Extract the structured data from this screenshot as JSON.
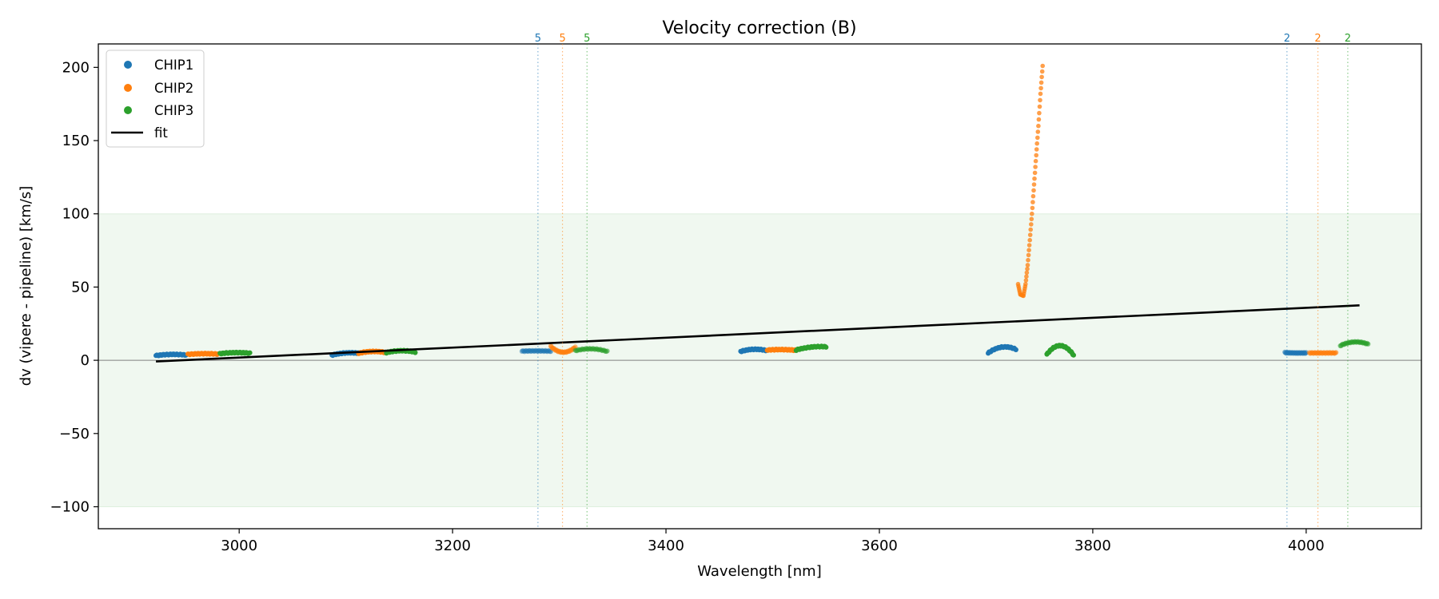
{
  "chart_data": {
    "type": "scatter",
    "title": "Velocity correction (B)",
    "xlabel": "Wavelength [nm]",
    "ylabel": "dv (vipere - pipeline) [km/s]",
    "xlim": [
      2868,
      4108
    ],
    "ylim": [
      -115,
      216
    ],
    "xticks": [
      3000,
      3200,
      3400,
      3600,
      3800,
      4000
    ],
    "yticks": [
      -100,
      -50,
      0,
      50,
      100,
      150,
      200
    ],
    "ytick_labels": [
      "−100",
      "−50",
      "0",
      "50",
      "100",
      "150",
      "200"
    ],
    "tolerance_band": [
      -100,
      100
    ],
    "zero_line": 0,
    "legend": {
      "position": "top-left",
      "entries": [
        "CHIP1",
        "CHIP2",
        "CHIP3",
        "fit"
      ]
    },
    "colors": {
      "CHIP1": "#1f77b4",
      "CHIP2": "#ff7f0e",
      "CHIP3": "#2ca02c",
      "fit": "#000000",
      "band": "#2ca02c"
    },
    "fit": {
      "x": [
        2922,
        4050
      ],
      "y": [
        -0.8,
        37.5
      ]
    },
    "segments": [
      {
        "chip": "CHIP1",
        "xr": [
          2922,
          2950
        ],
        "y": [
          3.2,
          4.0,
          3.6
        ],
        "alpha": 1.0
      },
      {
        "chip": "CHIP2",
        "xr": [
          2952,
          2980
        ],
        "y": [
          4.0,
          4.5,
          4.2
        ],
        "alpha": 1.0
      },
      {
        "chip": "CHIP3",
        "xr": [
          2982,
          3010
        ],
        "y": [
          4.5,
          5.2,
          4.8
        ],
        "alpha": 1.0
      },
      {
        "chip": "CHIP1",
        "xr": [
          3087,
          3112
        ],
        "y": [
          3.5,
          5.0,
          4.8
        ],
        "alpha": 1.0
      },
      {
        "chip": "CHIP2",
        "xr": [
          3112,
          3138
        ],
        "y": [
          4.8,
          6.0,
          5.2
        ],
        "alpha": 1.0
      },
      {
        "chip": "CHIP3",
        "xr": [
          3138,
          3165
        ],
        "y": [
          5.2,
          6.5,
          5.6
        ],
        "alpha": 1.0
      },
      {
        "chip": "CHIP1",
        "xr": [
          3265,
          3292
        ],
        "y": [
          6.2,
          6.4,
          6.2
        ],
        "alpha": 0.5
      },
      {
        "chip": "CHIP2",
        "xr": [
          3292,
          3315
        ],
        "y": [
          9.5,
          5.5,
          9.0
        ],
        "alpha": 0.55
      },
      {
        "chip": "CHIP3",
        "xr": [
          3315,
          3345
        ],
        "y": [
          6.5,
          7.8,
          6.0
        ],
        "alpha": 0.5
      },
      {
        "chip": "CHIP1",
        "xr": [
          3470,
          3495
        ],
        "y": [
          6.0,
          7.5,
          6.5
        ],
        "alpha": 1.0
      },
      {
        "chip": "CHIP2",
        "xr": [
          3495,
          3522
        ],
        "y": [
          7.0,
          7.3,
          6.8
        ],
        "alpha": 1.0
      },
      {
        "chip": "CHIP3",
        "xr": [
          3522,
          3550
        ],
        "y": [
          7.0,
          9.0,
          9.2
        ],
        "alpha": 1.0
      },
      {
        "chip": "CHIP1",
        "xr": [
          3702,
          3728
        ],
        "y": [
          5.0,
          9.0,
          7.5
        ],
        "alpha": 1.0
      },
      {
        "chip": "CHIP3",
        "xr": [
          3757,
          3782
        ],
        "y": [
          4.0,
          10.0,
          3.5
        ],
        "alpha": 1.0
      },
      {
        "chip": "CHIP1",
        "xr": [
          3980,
          4000
        ],
        "y": [
          5.2,
          5.0,
          5.0
        ],
        "alpha": 0.55
      },
      {
        "chip": "CHIP2",
        "xr": [
          4003,
          4028
        ],
        "y": [
          5.0,
          5.0,
          5.0
        ],
        "alpha": 0.55
      },
      {
        "chip": "CHIP3",
        "xr": [
          4032,
          4058
        ],
        "y": [
          10.0,
          12.5,
          11.0
        ],
        "alpha": 0.55
      }
    ],
    "chip2_outlier_curve": {
      "x": [
        3730,
        3732,
        3735,
        3737,
        3739,
        3741,
        3743,
        3745,
        3747,
        3749,
        3751,
        3753
      ],
      "y": [
        52,
        45,
        44,
        52,
        65,
        82,
        100,
        120,
        140,
        160,
        182,
        201
      ],
      "alpha": 0.75
    },
    "order_markers": [
      {
        "x": 3280,
        "label": "5",
        "chip": "CHIP1"
      },
      {
        "x": 3303,
        "label": "5",
        "chip": "CHIP2"
      },
      {
        "x": 3326,
        "label": "5",
        "chip": "CHIP3"
      },
      {
        "x": 3982,
        "label": "2",
        "chip": "CHIP1"
      },
      {
        "x": 4011,
        "label": "2",
        "chip": "CHIP2"
      },
      {
        "x": 4039,
        "label": "2",
        "chip": "CHIP3"
      }
    ]
  }
}
